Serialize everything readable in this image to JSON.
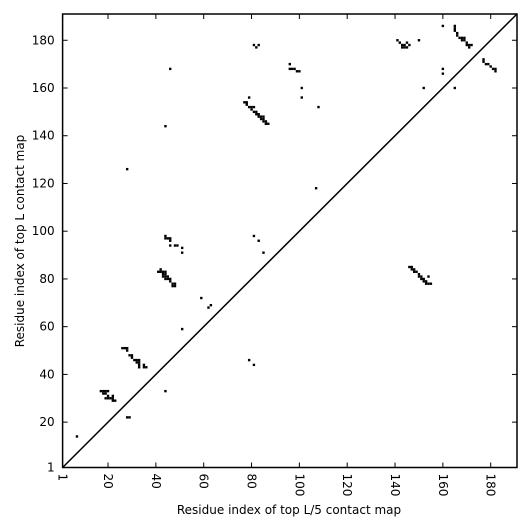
{
  "chart_data": {
    "type": "scatter",
    "xlabel": "Residue index of top L/5 contact map",
    "ylabel": "Residue index of top L contact map",
    "xlim": [
      1,
      191
    ],
    "ylim": [
      1,
      191
    ],
    "xticks": [
      1,
      20,
      40,
      60,
      80,
      100,
      120,
      140,
      160,
      180
    ],
    "yticks": [
      1,
      20,
      40,
      60,
      80,
      100,
      120,
      140,
      160,
      180
    ],
    "diagonal": true,
    "series": [
      {
        "color": "#000000",
        "x": [
          7,
          17,
          18,
          19,
          20,
          18,
          19,
          20,
          19,
          20,
          21,
          22,
          22,
          23,
          22,
          28,
          29,
          26,
          27,
          28,
          28,
          29,
          30,
          30,
          31,
          32,
          33,
          32,
          33,
          33,
          33,
          35,
          36,
          35,
          44,
          28,
          44,
          46,
          41,
          42,
          42,
          43,
          43,
          43,
          44,
          44,
          44,
          44,
          45,
          45,
          46,
          46,
          47,
          47,
          48,
          48,
          44,
          44,
          45,
          46,
          46,
          46,
          48,
          49,
          51,
          51,
          51,
          59,
          62,
          63,
          79,
          81,
          81,
          83,
          85,
          77,
          78,
          78,
          79,
          80,
          81,
          80,
          81,
          82,
          82,
          83,
          83,
          84,
          84,
          85,
          85,
          85,
          86,
          86,
          87,
          79,
          81,
          82,
          83,
          96,
          96,
          97,
          98,
          99,
          100,
          101,
          101,
          108,
          107,
          141,
          142,
          143,
          143,
          144,
          144,
          145,
          146,
          145,
          150,
          152,
          160,
          160,
          160,
          165,
          165,
          165,
          165,
          166,
          166,
          167,
          168,
          168,
          169,
          169,
          170,
          170,
          171,
          172,
          171,
          177,
          177,
          178,
          179,
          180,
          181,
          182,
          182,
          146,
          147,
          147,
          148,
          148,
          149,
          150,
          150,
          151,
          151,
          152,
          152,
          153,
          153,
          154,
          155,
          154
        ],
        "values": [
          14,
          33,
          33,
          33,
          33,
          32,
          32,
          31,
          30,
          30,
          30,
          29,
          30,
          29,
          31,
          22,
          22,
          51,
          51,
          51,
          50,
          48,
          48,
          47,
          46,
          46,
          46,
          45,
          45,
          44,
          43,
          44,
          43,
          43,
          33,
          126,
          144,
          168,
          83,
          84,
          83,
          83,
          82,
          81,
          83,
          82,
          81,
          80,
          81,
          80,
          80,
          79,
          78,
          77,
          77,
          78,
          98,
          97,
          97,
          97,
          96,
          94,
          94,
          94,
          93,
          91,
          59,
          72,
          68,
          69,
          46,
          44,
          98,
          96,
          91,
          154,
          154,
          153,
          152,
          152,
          152,
          151,
          150,
          150,
          149,
          149,
          148,
          148,
          147,
          148,
          147,
          146,
          146,
          145,
          145,
          156,
          178,
          177,
          178,
          170,
          168,
          168,
          168,
          167,
          167,
          160,
          156,
          152,
          118,
          180,
          179,
          178,
          177,
          178,
          177,
          177,
          178,
          179,
          180,
          160,
          186,
          168,
          166,
          160,
          186,
          185,
          184,
          183,
          182,
          181,
          181,
          180,
          181,
          180,
          179,
          178,
          178,
          178,
          177,
          172,
          171,
          170,
          170,
          169,
          168,
          168,
          167,
          85,
          85,
          84,
          84,
          83,
          83,
          82,
          81,
          81,
          80,
          80,
          79,
          79,
          78,
          78,
          78,
          81
        ]
      }
    ]
  }
}
